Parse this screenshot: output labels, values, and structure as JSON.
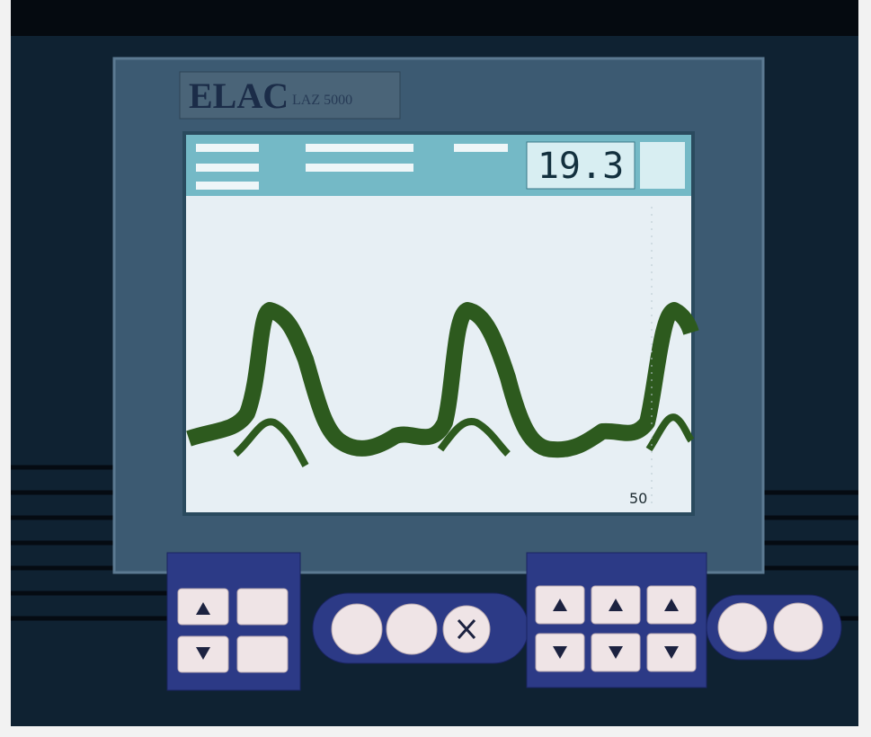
{
  "device": {
    "brand": "ELAC",
    "model": "LAZ 5000"
  },
  "display": {
    "depth": 19.3,
    "scale_label": 50
  }
}
